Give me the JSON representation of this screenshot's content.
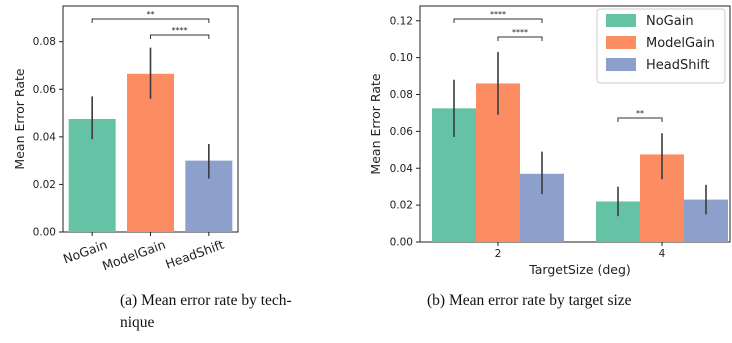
{
  "chart_data": [
    {
      "id": "a",
      "type": "bar",
      "categories": [
        "NoGain",
        "ModelGain",
        "HeadShift"
      ],
      "values": [
        0.0475,
        0.0665,
        0.03
      ],
      "err_low": [
        0.039,
        0.056,
        0.0225
      ],
      "err_high": [
        0.057,
        0.0775,
        0.037
      ],
      "colors": [
        "#66c2a5",
        "#fc8d62",
        "#8da0cb"
      ],
      "ylabel": "Mean Error Rate",
      "ylim": [
        0,
        0.095
      ],
      "yticks": [
        "0.00",
        "0.02",
        "0.04",
        "0.06",
        "0.08"
      ],
      "grid": false,
      "significance": [
        {
          "from": "NoGain",
          "to": "HeadShift",
          "label": "**"
        },
        {
          "from": "ModelGain",
          "to": "HeadShift",
          "label": "****"
        }
      ],
      "caption_line1": "(a) Mean error rate by tech-",
      "caption_line2": "nique"
    },
    {
      "id": "b",
      "type": "bar",
      "categories": [
        "2",
        "4"
      ],
      "xlabel": "TargetSize (deg)",
      "ylabel": "Mean Error Rate",
      "ylim": [
        0,
        0.128
      ],
      "yticks": [
        "0.00",
        "0.02",
        "0.04",
        "0.06",
        "0.08",
        "0.10",
        "0.12"
      ],
      "series": [
        {
          "name": "NoGain",
          "color": "#66c2a5",
          "values": [
            0.0725,
            0.022
          ],
          "err_low": [
            0.057,
            0.014
          ],
          "err_high": [
            0.088,
            0.03
          ]
        },
        {
          "name": "ModelGain",
          "color": "#fc8d62",
          "values": [
            0.086,
            0.0475
          ],
          "err_low": [
            0.069,
            0.034
          ],
          "err_high": [
            0.103,
            0.059
          ]
        },
        {
          "name": "HeadShift",
          "color": "#8da0cb",
          "values": [
            0.037,
            0.023
          ],
          "err_low": [
            0.026,
            0.015
          ],
          "err_high": [
            0.049,
            0.031
          ]
        }
      ],
      "legend_position": "upper right",
      "grid": false,
      "significance": [
        {
          "group": "2",
          "from": "NoGain",
          "to": "HeadShift",
          "label": "****"
        },
        {
          "group": "2",
          "from": "ModelGain",
          "to": "HeadShift",
          "label": "****"
        },
        {
          "group": "4",
          "from": "NoGain",
          "to": "ModelGain",
          "label": "**"
        }
      ],
      "caption": "(b) Mean error rate by target size"
    }
  ]
}
